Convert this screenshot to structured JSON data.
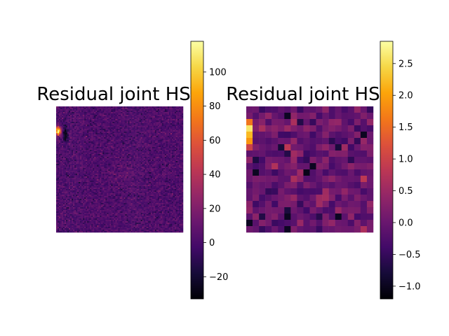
{
  "chart_data": [
    {
      "type": "heatmap",
      "title": "Residual joint HST",
      "grid_size": [
        90,
        90
      ],
      "colormap": "inferno",
      "colorbar": {
        "range": [
          -33,
          118
        ],
        "ticks": [
          -20,
          0,
          20,
          40,
          60,
          80,
          100
        ],
        "tick_labels": [
          "−20",
          "0",
          "20",
          "40",
          "60",
          "80",
          "100"
        ]
      },
      "features": {
        "background_mean": 2,
        "noise_std": 6,
        "bright_source": {
          "col": 1,
          "row": 17,
          "peak": 118
        },
        "negative_artifact": {
          "col": 6,
          "row": 20,
          "value": -28
        },
        "faint_blob": {
          "col": 47,
          "row": 47,
          "amplitude": 6
        }
      }
    },
    {
      "type": "heatmap",
      "title": "Residual joint HSC",
      "grid_size": [
        20,
        20
      ],
      "colormap": "inferno",
      "colorbar": {
        "range": [
          -1.2,
          2.85
        ],
        "ticks": [
          -1.0,
          -0.5,
          0.0,
          0.5,
          1.0,
          1.5,
          2.0,
          2.5
        ],
        "tick_labels": [
          "−1.0",
          "−0.5",
          "0.0",
          "0.5",
          "1.0",
          "1.5",
          "2.0",
          "2.5"
        ]
      },
      "features": {
        "background_mean": 0.0,
        "noise_std": 0.28,
        "bright_pixels": [
          {
            "col": 0,
            "row": 2,
            "value": 1.6
          },
          {
            "col": 0,
            "row": 3,
            "value": 2.6
          },
          {
            "col": 0,
            "row": 4,
            "value": 2.2
          },
          {
            "col": 0,
            "row": 5,
            "value": 1.9
          },
          {
            "col": 0,
            "row": 6,
            "value": 1.0
          }
        ]
      }
    }
  ]
}
